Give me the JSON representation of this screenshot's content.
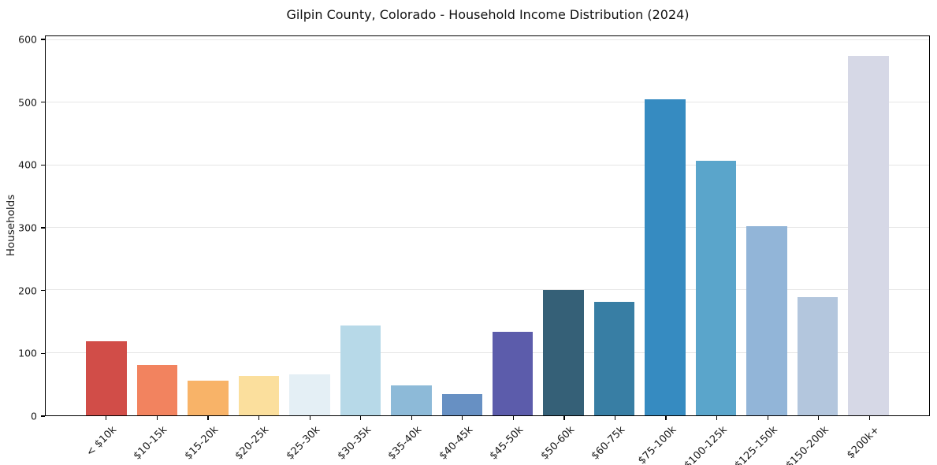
{
  "chart_data": {
    "type": "bar",
    "title": "Gilpin County, Colorado - Household Income Distribution (2024)",
    "xlabel": "",
    "ylabel": "Households",
    "ylim": [
      0,
      600
    ],
    "yticks": [
      0,
      100,
      200,
      300,
      400,
      500,
      600
    ],
    "grid": "horizontal-only",
    "legend": "none",
    "background_color": "#ffffff",
    "gridline_color": "#e6e6e6",
    "spine_color": "#000000",
    "categories": [
      "< $10k",
      "$10-15k",
      "$15-20k",
      "$20-25k",
      "$25-30k",
      "$30-35k",
      "$35-40k",
      "$40-45k",
      "$45-50k",
      "$50-60k",
      "$60-75k",
      "$75-100k",
      "$100-125k",
      "$125-150k",
      "$150-200k",
      "$200k+"
    ],
    "values": [
      118,
      81,
      55,
      63,
      65,
      144,
      48,
      34,
      134,
      201,
      182,
      506,
      407,
      303,
      189,
      575
    ],
    "bar_colors": [
      "#d14d48",
      "#f2835f",
      "#f8b368",
      "#fbdf9d",
      "#e4eff5",
      "#b7d9e8",
      "#8dbad8",
      "#6790c3",
      "#5c5cab",
      "#356077",
      "#387ea4",
      "#368bc1",
      "#5aa5cb",
      "#92b5d8",
      "#b3c6dd",
      "#d6d8e6"
    ]
  }
}
